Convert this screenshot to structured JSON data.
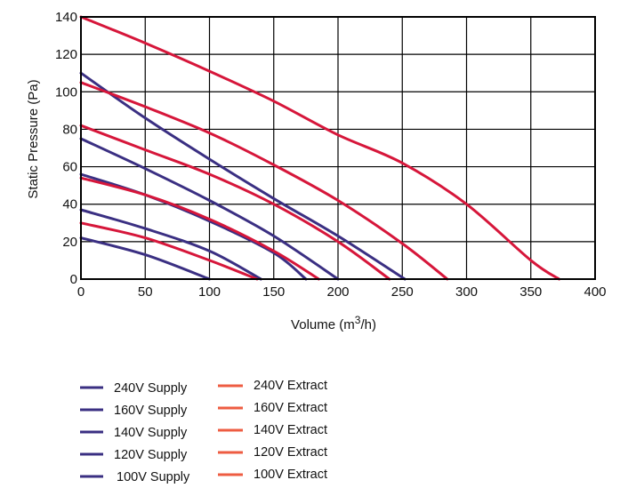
{
  "chart_data": {
    "type": "line",
    "xlabel": "Volume (m3/h)",
    "xlabel_parts": {
      "prefix": "Volume (m",
      "sup": "3",
      "suffix": "/h)"
    },
    "ylabel": "Static Pressure (Pa)",
    "xlim": [
      0,
      400
    ],
    "ylim": [
      0,
      140
    ],
    "x_ticks": [
      0,
      50,
      100,
      150,
      200,
      250,
      300,
      350,
      400
    ],
    "y_ticks": [
      0,
      20,
      40,
      60,
      80,
      100,
      120,
      140
    ],
    "grid": true,
    "legend_position": "bottom-left",
    "colors": {
      "supply": "#3a2f82",
      "extract": "#d6163a",
      "supply_legend": "#3a2f82",
      "extract_legend": "#ee5c42"
    },
    "series": [
      {
        "name": "240V Supply",
        "group": "supply",
        "x": [
          0,
          50,
          100,
          150,
          200,
          252
        ],
        "y": [
          110,
          86,
          64,
          43,
          23,
          0
        ]
      },
      {
        "name": "160V Supply",
        "group": "supply",
        "x": [
          0,
          50,
          100,
          150,
          200
        ],
        "y": [
          75,
          59,
          42,
          23,
          0
        ]
      },
      {
        "name": "140V Supply",
        "group": "supply",
        "x": [
          0,
          50,
          100,
          150,
          175
        ],
        "y": [
          56,
          45,
          31,
          14,
          0
        ]
      },
      {
        "name": "120V Supply",
        "group": "supply",
        "x": [
          0,
          50,
          100,
          140
        ],
        "y": [
          37,
          27,
          15,
          0
        ]
      },
      {
        "name": "100V Supply",
        "group": "supply",
        "x": [
          0,
          50,
          100
        ],
        "y": [
          22,
          13,
          0
        ]
      },
      {
        "name": "240V Extract",
        "group": "extract",
        "x": [
          0,
          50,
          100,
          150,
          200,
          250,
          300,
          350,
          372
        ],
        "y": [
          140,
          126,
          111,
          95,
          77,
          62,
          40,
          10,
          0
        ]
      },
      {
        "name": "160V Extract",
        "group": "extract",
        "x": [
          0,
          50,
          100,
          150,
          200,
          250,
          285
        ],
        "y": [
          105,
          92,
          78,
          61,
          42,
          19,
          0
        ]
      },
      {
        "name": "140V Extract",
        "group": "extract",
        "x": [
          0,
          50,
          100,
          150,
          200,
          240
        ],
        "y": [
          82,
          69,
          56,
          40,
          20,
          0
        ]
      },
      {
        "name": "120V Extract",
        "group": "extract",
        "x": [
          0,
          50,
          100,
          150,
          185
        ],
        "y": [
          54,
          45,
          32,
          15,
          0
        ]
      },
      {
        "name": "100V Extract",
        "group": "extract",
        "x": [
          0,
          50,
          100,
          137
        ],
        "y": [
          30,
          22,
          10,
          0
        ]
      }
    ],
    "legend": {
      "supply": [
        "240V Supply",
        "160V Supply",
        "140V Supply",
        "120V Supply",
        "100V Supply"
      ],
      "extract": [
        "240V Extract",
        "160V Extract",
        "140V Extract",
        "120V Extract",
        "100V Extract"
      ]
    }
  }
}
